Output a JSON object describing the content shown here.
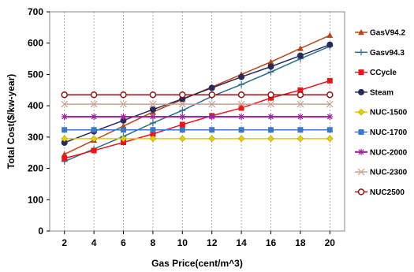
{
  "chart_data": {
    "type": "line",
    "title": "",
    "xlabel": "Gas Price(cent/m^3)",
    "ylabel": "Total Cost($/kw-year)",
    "x": [
      2,
      4,
      6,
      8,
      10,
      12,
      14,
      16,
      18,
      20
    ],
    "xticks": [
      "2",
      "4",
      "6",
      "8",
      "10",
      "12",
      "14",
      "16",
      "18",
      "20"
    ],
    "yticks": [
      "0",
      "100",
      "200",
      "300",
      "400",
      "500",
      "600",
      "700"
    ],
    "xlim": [
      1,
      21
    ],
    "ylim": [
      0,
      700
    ],
    "grid": "vertical-dashed",
    "legend_position": "right",
    "series": [
      {
        "name": "GasV94.2",
        "color": "#b5461a",
        "marker": "triangle",
        "values": [
          245,
          290,
          335,
          380,
          420,
          460,
          500,
          540,
          583,
          625
        ]
      },
      {
        "name": "Gasv94.3",
        "color": "#2a6e8c",
        "marker": "plus",
        "values": [
          222,
          262,
          302,
          345,
          385,
          430,
          468,
          508,
          550,
          590
        ]
      },
      {
        "name": "CCycle",
        "color": "#e8161c",
        "marker": "square",
        "values": [
          232,
          257,
          283,
          310,
          340,
          368,
          393,
          425,
          450,
          480
        ]
      },
      {
        "name": "Steam",
        "color": "#2a2a5a",
        "marker": "circle",
        "values": [
          282,
          318,
          353,
          388,
          422,
          457,
          492,
          525,
          560,
          595
        ]
      },
      {
        "name": "NUC-1500",
        "color": "#e0d000",
        "marker": "diamond",
        "values": [
          295,
          295,
          295,
          295,
          295,
          295,
          295,
          295,
          295,
          295
        ]
      },
      {
        "name": "NUC-1700",
        "color": "#3a78c8",
        "marker": "square",
        "values": [
          323,
          323,
          323,
          323,
          323,
          323,
          323,
          323,
          323,
          323
        ]
      },
      {
        "name": "NUC-2000",
        "color": "#9a2a9a",
        "marker": "star",
        "values": [
          365,
          365,
          365,
          365,
          365,
          365,
          365,
          365,
          365,
          365
        ]
      },
      {
        "name": "NUC-2300",
        "color": "#c8a090",
        "marker": "x",
        "values": [
          405,
          405,
          405,
          405,
          405,
          405,
          405,
          405,
          405,
          405
        ]
      },
      {
        "name": "NUC2500",
        "color": "#8a1a1a",
        "marker": "circle-open",
        "values": [
          435,
          435,
          435,
          435,
          435,
          435,
          435,
          435,
          435,
          435
        ]
      }
    ]
  }
}
